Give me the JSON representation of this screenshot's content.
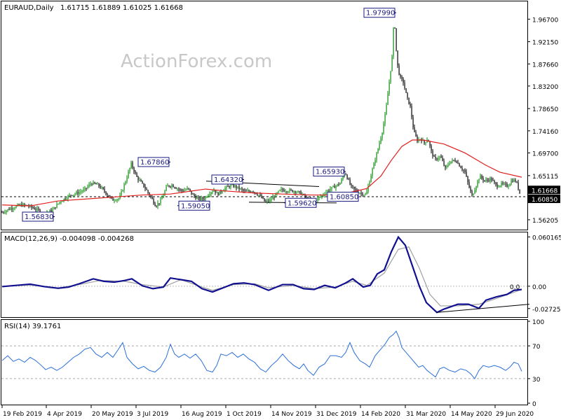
{
  "header": {
    "symbol": "EURAUD,Daily",
    "ohlc": "1.61715 1.61889 1.61025 1.61668"
  },
  "watermark": "ActionForex.com",
  "colors": {
    "up": "#0a8a0a",
    "down": "#000000",
    "ma": "#e0201e",
    "macd": "#101090",
    "signal": "#a0a0a0",
    "rsi": "#2a6fd6",
    "label_border": "#1a1a80",
    "label_text": "#1a1a80"
  },
  "chart_data": [
    {
      "type": "candlestick",
      "title": "EURAUD,Daily",
      "ylim": [
        1.545,
        2.0
      ],
      "yticks": [
        "1.96700",
        "1.92150",
        "1.87660",
        "1.83200",
        "1.78650",
        "1.74160",
        "1.69700",
        "1.65115",
        "1.60650",
        "1.56205"
      ],
      "xticks": [
        "19 Feb 2019",
        "4 Apr 2019",
        "20 May 2019",
        "3 Jul 2019",
        "16 Aug 2019",
        "1 Oct 2019",
        "14 Nov 2019",
        "31 Dec 2019",
        "14 Feb 2020",
        "31 Mar 2020",
        "14 May 2020",
        "29 Jun 2020"
      ],
      "close_path": [
        [
          0,
          1.575
        ],
        [
          15,
          1.585
        ],
        [
          30,
          1.592
        ],
        [
          40,
          1.59
        ],
        [
          55,
          1.581
        ],
        [
          62,
          1.573
        ],
        [
          75,
          1.582
        ],
        [
          85,
          1.598
        ],
        [
          100,
          1.612
        ],
        [
          110,
          1.616
        ],
        [
          120,
          1.622
        ],
        [
          130,
          1.636
        ],
        [
          140,
          1.632
        ],
        [
          150,
          1.618
        ],
        [
          160,
          1.602
        ],
        [
          170,
          1.605
        ],
        [
          180,
          1.644
        ],
        [
          187,
          1.675
        ],
        [
          195,
          1.648
        ],
        [
          205,
          1.63
        ],
        [
          215,
          1.608
        ],
        [
          222,
          1.59
        ],
        [
          230,
          1.602
        ],
        [
          238,
          1.63
        ],
        [
          245,
          1.632
        ],
        [
          252,
          1.626
        ],
        [
          260,
          1.62
        ],
        [
          268,
          1.625
        ],
        [
          276,
          1.61
        ],
        [
          284,
          1.603
        ],
        [
          292,
          1.606
        ],
        [
          300,
          1.618
        ],
        [
          305,
          1.622
        ],
        [
          310,
          1.613
        ],
        [
          320,
          1.625
        ],
        [
          330,
          1.632
        ],
        [
          340,
          1.626
        ],
        [
          350,
          1.618
        ],
        [
          360,
          1.621
        ],
        [
          370,
          1.611
        ],
        [
          378,
          1.598
        ],
        [
          385,
          1.601
        ],
        [
          393,
          1.612
        ],
        [
          400,
          1.622
        ],
        [
          410,
          1.621
        ],
        [
          420,
          1.62
        ],
        [
          430,
          1.615
        ],
        [
          438,
          1.601
        ],
        [
          446,
          1.599
        ],
        [
          452,
          1.604
        ],
        [
          460,
          1.612
        ],
        [
          468,
          1.622
        ],
        [
          476,
          1.628
        ],
        [
          485,
          1.636
        ],
        [
          492,
          1.658
        ],
        [
          500,
          1.63
        ],
        [
          508,
          1.62
        ],
        [
          516,
          1.615
        ],
        [
          522,
          1.612
        ],
        [
          530,
          1.658
        ],
        [
          538,
          1.7
        ],
        [
          545,
          1.74
        ],
        [
          550,
          1.78
        ],
        [
          555,
          1.84
        ],
        [
          559,
          1.89
        ],
        [
          562,
          1.975
        ],
        [
          566,
          1.88
        ],
        [
          570,
          1.85
        ],
        [
          575,
          1.84
        ],
        [
          580,
          1.81
        ],
        [
          585,
          1.79
        ],
        [
          590,
          1.74
        ],
        [
          595,
          1.722
        ],
        [
          600,
          1.726
        ],
        [
          605,
          1.717
        ],
        [
          610,
          1.726
        ],
        [
          615,
          1.7
        ],
        [
          620,
          1.683
        ],
        [
          628,
          1.69
        ],
        [
          635,
          1.665
        ],
        [
          642,
          1.68
        ],
        [
          650,
          1.682
        ],
        [
          657,
          1.668
        ],
        [
          663,
          1.658
        ],
        [
          668,
          1.632
        ],
        [
          673,
          1.61
        ],
        [
          678,
          1.628
        ],
        [
          684,
          1.65
        ],
        [
          692,
          1.64
        ],
        [
          700,
          1.645
        ],
        [
          708,
          1.63
        ],
        [
          716,
          1.634
        ],
        [
          724,
          1.63
        ],
        [
          730,
          1.642
        ],
        [
          736,
          1.64
        ],
        [
          741,
          1.616
        ]
      ],
      "ma_path": [
        [
          0,
          1.592
        ],
        [
          40,
          1.59
        ],
        [
          80,
          1.6
        ],
        [
          120,
          1.604
        ],
        [
          160,
          1.608
        ],
        [
          200,
          1.612
        ],
        [
          240,
          1.614
        ],
        [
          290,
          1.624
        ],
        [
          320,
          1.62
        ],
        [
          360,
          1.616
        ],
        [
          400,
          1.614
        ],
        [
          440,
          1.612
        ],
        [
          480,
          1.612
        ],
        [
          520,
          1.625
        ],
        [
          540,
          1.65
        ],
        [
          555,
          1.682
        ],
        [
          570,
          1.71
        ],
        [
          585,
          1.723
        ],
        [
          600,
          1.723
        ],
        [
          630,
          1.715
        ],
        [
          660,
          1.697
        ],
        [
          690,
          1.672
        ],
        [
          710,
          1.658
        ],
        [
          741,
          1.648
        ]
      ],
      "levels": [
        {
          "label": "1.97990",
          "x": 562,
          "y": 1.9799,
          "side": "left"
        },
        {
          "label": "1.67860",
          "x": 240,
          "y": 1.6786,
          "side": "left"
        },
        {
          "label": "1.64320",
          "x": 345,
          "y": 1.6432,
          "side": "left"
        },
        {
          "label": "1.65930",
          "x": 490,
          "y": 1.6593,
          "side": "left"
        },
        {
          "label": "1.59050",
          "x": 250,
          "y": 1.5905,
          "side": "right"
        },
        {
          "label": "1.59620",
          "x": 402,
          "y": 1.5962,
          "side": "right"
        },
        {
          "label": "1.60850",
          "x": 462,
          "y": 1.6085,
          "side": "right"
        },
        {
          "label": "1.56830",
          "x": 75,
          "y": 1.5683,
          "side": "left"
        }
      ],
      "price_tags": [
        {
          "label": "1.61668",
          "y": 1.61668,
          "style": "dark"
        },
        {
          "label": "1.60850",
          "y": 1.6085,
          "style": "dark"
        }
      ],
      "dashed_level": 1.6085
    },
    {
      "type": "line",
      "title": "MACD(12,26,9) -0.004098 -0.004268",
      "ylim": [
        -0.036,
        0.064
      ],
      "yticks": [
        "0.060165",
        "0.00",
        "-0.02725"
      ],
      "zero_tick": "0.0",
      "macd_path": [
        [
          0,
          -0.0005
        ],
        [
          20,
          0.001
        ],
        [
          40,
          0.0025
        ],
        [
          60,
          -0.0005
        ],
        [
          80,
          -0.0025
        ],
        [
          95,
          -0.001
        ],
        [
          110,
          0.003
        ],
        [
          130,
          0.009
        ],
        [
          145,
          0.006
        ],
        [
          160,
          0.005
        ],
        [
          175,
          0.007
        ],
        [
          185,
          0.009
        ],
        [
          200,
          0.0005
        ],
        [
          215,
          -0.003
        ],
        [
          230,
          -0.001
        ],
        [
          240,
          0.01
        ],
        [
          255,
          0.008
        ],
        [
          270,
          0.006
        ],
        [
          285,
          -0.003
        ],
        [
          300,
          -0.007
        ],
        [
          315,
          -0.002
        ],
        [
          330,
          0.003
        ],
        [
          345,
          0.004
        ],
        [
          360,
          0.002
        ],
        [
          380,
          -0.005
        ],
        [
          400,
          0.002
        ],
        [
          415,
          0.002
        ],
        [
          430,
          -0.003
        ],
        [
          445,
          -0.004
        ],
        [
          460,
          0.001
        ],
        [
          475,
          -0.002
        ],
        [
          490,
          0.004
        ],
        [
          500,
          0.009
        ],
        [
          515,
          -0.001
        ],
        [
          525,
          0.001
        ],
        [
          535,
          0.015
        ],
        [
          545,
          0.02
        ],
        [
          555,
          0.042
        ],
        [
          565,
          0.06
        ],
        [
          575,
          0.05
        ],
        [
          585,
          0.025
        ],
        [
          595,
          0.0
        ],
        [
          605,
          -0.02
        ],
        [
          620,
          -0.032
        ],
        [
          630,
          -0.028
        ],
        [
          650,
          -0.022
        ],
        [
          665,
          -0.022
        ],
        [
          680,
          -0.027
        ],
        [
          690,
          -0.017
        ],
        [
          705,
          -0.013
        ],
        [
          720,
          -0.01
        ],
        [
          730,
          -0.005
        ],
        [
          741,
          -0.004
        ]
      ],
      "signal_path": [
        [
          0,
          0.0
        ],
        [
          40,
          0.0015
        ],
        [
          80,
          -0.002
        ],
        [
          110,
          0.002
        ],
        [
          140,
          0.007
        ],
        [
          175,
          0.006
        ],
        [
          200,
          0.002
        ],
        [
          230,
          -0.001
        ],
        [
          255,
          0.008
        ],
        [
          285,
          -0.001
        ],
        [
          300,
          -0.005
        ],
        [
          330,
          0.002
        ],
        [
          360,
          0.003
        ],
        [
          380,
          -0.002
        ],
        [
          415,
          0.001
        ],
        [
          445,
          -0.003
        ],
        [
          475,
          -0.001
        ],
        [
          500,
          0.006
        ],
        [
          520,
          0.001
        ],
        [
          545,
          0.016
        ],
        [
          565,
          0.045
        ],
        [
          580,
          0.048
        ],
        [
          595,
          0.022
        ],
        [
          610,
          -0.01
        ],
        [
          625,
          -0.024
        ],
        [
          650,
          -0.024
        ],
        [
          680,
          -0.022
        ],
        [
          705,
          -0.015
        ],
        [
          741,
          -0.004
        ]
      ],
      "trendline": [
        [
          620,
          -0.032
        ],
        [
          755,
          -0.022
        ]
      ]
    },
    {
      "type": "line",
      "title": "RSI(14) 39.1761",
      "ylim": [
        0,
        100
      ],
      "yticks": [
        "100",
        "70",
        "30",
        "0"
      ],
      "levels": [
        70,
        30
      ],
      "rsi_path": [
        [
          0,
          52
        ],
        [
          8,
          58
        ],
        [
          16,
          51
        ],
        [
          24,
          54
        ],
        [
          32,
          50
        ],
        [
          40,
          56
        ],
        [
          48,
          52
        ],
        [
          56,
          46
        ],
        [
          62,
          41
        ],
        [
          70,
          44
        ],
        [
          78,
          40
        ],
        [
          86,
          44
        ],
        [
          94,
          50
        ],
        [
          102,
          56
        ],
        [
          110,
          60
        ],
        [
          118,
          66
        ],
        [
          126,
          68
        ],
        [
          134,
          60
        ],
        [
          142,
          56
        ],
        [
          150,
          62
        ],
        [
          158,
          56
        ],
        [
          166,
          66
        ],
        [
          172,
          74
        ],
        [
          178,
          56
        ],
        [
          186,
          48
        ],
        [
          194,
          42
        ],
        [
          202,
          45
        ],
        [
          210,
          40
        ],
        [
          218,
          38
        ],
        [
          226,
          44
        ],
        [
          234,
          56
        ],
        [
          240,
          72
        ],
        [
          246,
          60
        ],
        [
          252,
          56
        ],
        [
          260,
          60
        ],
        [
          268,
          55
        ],
        [
          276,
          60
        ],
        [
          284,
          52
        ],
        [
          292,
          40
        ],
        [
          300,
          38
        ],
        [
          306,
          46
        ],
        [
          312,
          60
        ],
        [
          320,
          58
        ],
        [
          328,
          62
        ],
        [
          336,
          56
        ],
        [
          344,
          60
        ],
        [
          352,
          54
        ],
        [
          360,
          50
        ],
        [
          368,
          42
        ],
        [
          376,
          38
        ],
        [
          384,
          46
        ],
        [
          392,
          52
        ],
        [
          400,
          60
        ],
        [
          408,
          52
        ],
        [
          416,
          46
        ],
        [
          424,
          42
        ],
        [
          430,
          48
        ],
        [
          436,
          40
        ],
        [
          444,
          34
        ],
        [
          452,
          44
        ],
        [
          460,
          48
        ],
        [
          468,
          58
        ],
        [
          476,
          58
        ],
        [
          484,
          56
        ],
        [
          490,
          62
        ],
        [
          496,
          74
        ],
        [
          502,
          62
        ],
        [
          510,
          52
        ],
        [
          518,
          48
        ],
        [
          524,
          44
        ],
        [
          532,
          58
        ],
        [
          540,
          66
        ],
        [
          546,
          72
        ],
        [
          552,
          80
        ],
        [
          558,
          84
        ],
        [
          562,
          88
        ],
        [
          566,
          80
        ],
        [
          570,
          68
        ],
        [
          576,
          62
        ],
        [
          582,
          56
        ],
        [
          588,
          50
        ],
        [
          594,
          44
        ],
        [
          600,
          46
        ],
        [
          606,
          40
        ],
        [
          612,
          36
        ],
        [
          618,
          32
        ],
        [
          624,
          42
        ],
        [
          630,
          44
        ],
        [
          638,
          40
        ],
        [
          646,
          38
        ],
        [
          654,
          42
        ],
        [
          662,
          40
        ],
        [
          668,
          36
        ],
        [
          674,
          30
        ],
        [
          680,
          40
        ],
        [
          686,
          46
        ],
        [
          694,
          44
        ],
        [
          702,
          46
        ],
        [
          710,
          44
        ],
        [
          718,
          40
        ],
        [
          724,
          44
        ],
        [
          730,
          50
        ],
        [
          736,
          48
        ],
        [
          741,
          39
        ]
      ]
    }
  ]
}
